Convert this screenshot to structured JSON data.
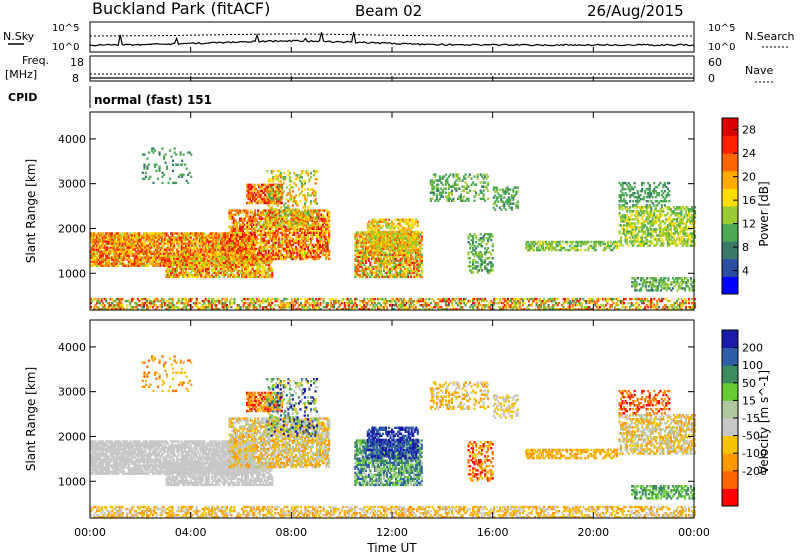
{
  "header": {
    "station": "Buckland Park (fitACF)",
    "beam": "Beam 02",
    "date": "26/Aug/2015"
  },
  "summary": {
    "nsky_label": "N.Sky",
    "nsearch_label": "N.Search",
    "freq_label_1": "Freq.",
    "freq_label_2": "[MHz]",
    "nave_label": "Nave",
    "cpid_label": "CPID",
    "cpid_text": "normal (fast) 151",
    "noise_ticks_left": [
      "10^5",
      "10^0"
    ],
    "noise_ticks_right": [
      "10^5",
      "10^0"
    ],
    "freq_ticks": [
      "18",
      "8"
    ],
    "nave_ticks": [
      "60",
      "0"
    ]
  },
  "colors": {
    "power": [
      "#0000ff",
      "#2b4ea0",
      "#3a7a6a",
      "#4caa55",
      "#99cc33",
      "#ffdd00",
      "#ffaa00",
      "#ff6600",
      "#ff2200",
      "#dd0000"
    ],
    "velocity": [
      "#1a1aa8",
      "#2e5fa6",
      "#3d8c60",
      "#66cc33",
      "#b0c8a0",
      "#c8c8c8",
      "#f5c200",
      "#ff9900",
      "#ff6600",
      "#ff0000"
    ]
  },
  "chart_data": [
    {
      "type": "heatmap",
      "title": "",
      "xlabel": "",
      "ylabel": "Slant Range [km]",
      "xlim": [
        "00:00",
        "24:00"
      ],
      "ylim": [
        180,
        4600
      ],
      "yticks": [
        "1000",
        "2000",
        "3000",
        "4000"
      ],
      "colorbar": {
        "label": "Power [dB]",
        "ticks": [
          "4",
          "8",
          "12",
          "16",
          "20",
          "24",
          "28"
        ],
        "range": [
          0,
          30
        ]
      },
      "grid": false
    },
    {
      "type": "heatmap",
      "title": "",
      "xlabel": "Time UT",
      "ylabel": "Slant Range [km]",
      "xlim": [
        "00:00",
        "24:00"
      ],
      "ylim": [
        180,
        4600
      ],
      "xticks": [
        "00:00",
        "04:00",
        "08:00",
        "12:00",
        "16:00",
        "20:00",
        "00:00"
      ],
      "yticks": [
        "1000",
        "2000",
        "3000",
        "4000"
      ],
      "colorbar": {
        "label": "Velocity [m s^-1]",
        "ticks": [
          "200",
          "100",
          "50",
          "15",
          "-15",
          "-50",
          "-100",
          "-200"
        ]
      },
      "grid": false
    }
  ]
}
